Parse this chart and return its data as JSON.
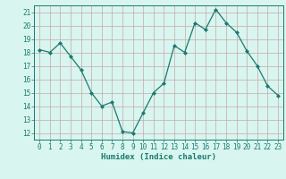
{
  "x": [
    0,
    1,
    2,
    3,
    4,
    5,
    6,
    7,
    8,
    9,
    10,
    11,
    12,
    13,
    14,
    15,
    16,
    17,
    18,
    19,
    20,
    21,
    22,
    23
  ],
  "y": [
    18.2,
    18.0,
    18.7,
    17.7,
    16.7,
    15.0,
    14.0,
    14.3,
    12.1,
    12.0,
    13.5,
    15.0,
    15.7,
    18.5,
    18.0,
    20.2,
    19.7,
    21.2,
    20.2,
    19.5,
    18.1,
    17.0,
    15.5,
    14.8
  ],
  "line_color": "#1a7a6e",
  "marker": "D",
  "marker_size": 2.0,
  "bg_color": "#d8f5ef",
  "grid_color": "#c8a8a8",
  "tick_color": "#1a7a6e",
  "label_color": "#1a7a6e",
  "xlabel": "Humidex (Indice chaleur)",
  "xlim": [
    -0.5,
    23.5
  ],
  "ylim": [
    11.5,
    21.5
  ],
  "yticks": [
    12,
    13,
    14,
    15,
    16,
    17,
    18,
    19,
    20,
    21
  ],
  "xticks": [
    0,
    1,
    2,
    3,
    4,
    5,
    6,
    7,
    8,
    9,
    10,
    11,
    12,
    13,
    14,
    15,
    16,
    17,
    18,
    19,
    20,
    21,
    22,
    23
  ],
  "tick_fontsize": 5.5,
  "xlabel_fontsize": 6.5
}
